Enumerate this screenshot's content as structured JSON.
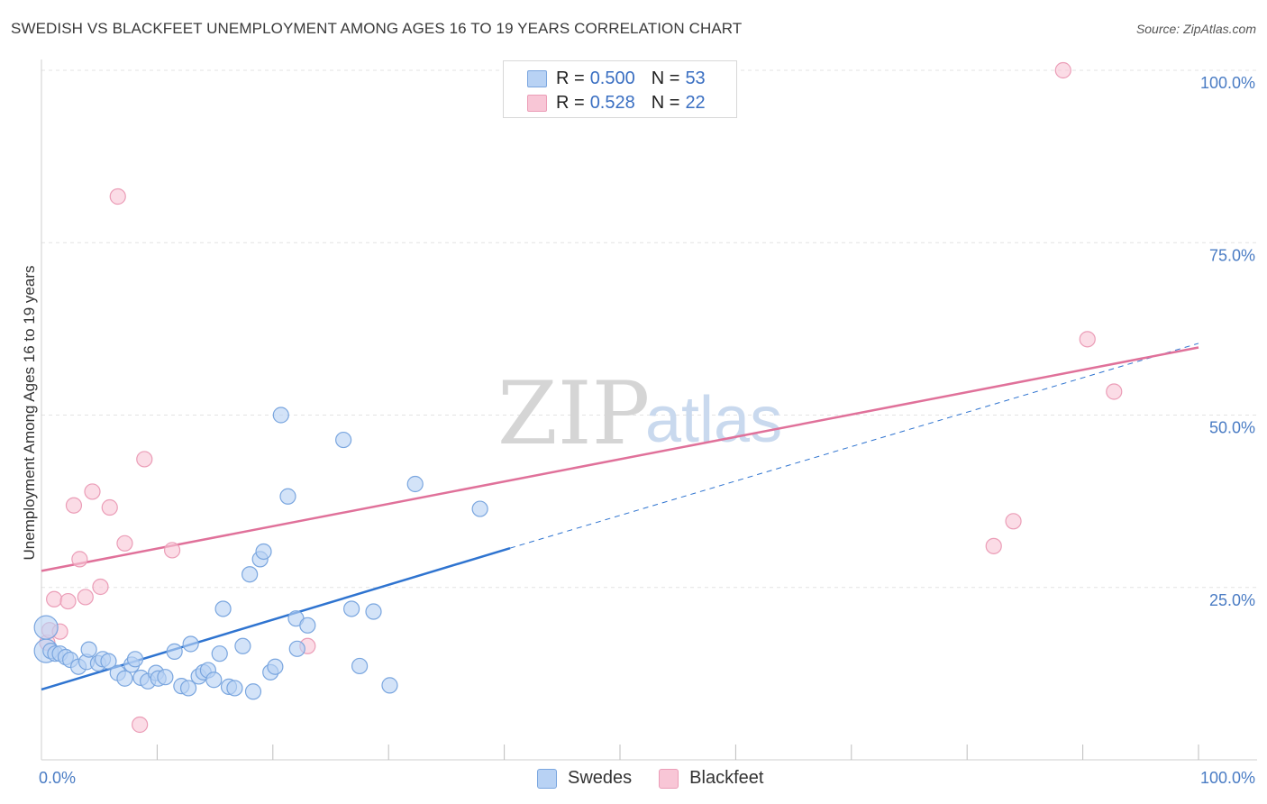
{
  "title": "SWEDISH VS BLACKFEET UNEMPLOYMENT AMONG AGES 16 TO 19 YEARS CORRELATION CHART",
  "source": "Source: ZipAtlas.com",
  "watermark": {
    "zip": "ZIP",
    "atlas": "atlas"
  },
  "colors": {
    "swedes_fill": "#b8d2f4",
    "swedes_stroke": "#7aa6df",
    "swedes_line": "#2f74d0",
    "blackfeet_fill": "#f8c6d6",
    "blackfeet_stroke": "#eb9db7",
    "blackfeet_line": "#e0719a",
    "grid": "#e3e3e3",
    "tick_label": "#4a7cc4"
  },
  "legend": {
    "rows": [
      {
        "r_label": "R =",
        "r_value": "0.500",
        "n_label": "N =",
        "n_value": "53"
      },
      {
        "r_label": "R =",
        "r_value": "0.528",
        "n_label": "N =",
        "n_value": "22"
      }
    ]
  },
  "bottom_legend": [
    {
      "label": "Swedes"
    },
    {
      "label": "Blackfeet"
    }
  ],
  "chart_data": {
    "type": "scatter",
    "title": "SWEDISH VS BLACKFEET UNEMPLOYMENT AMONG AGES 16 TO 19 YEARS CORRELATION CHART",
    "xlabel": "",
    "ylabel": "Unemployment Among Ages 16 to 19 years",
    "xlim": [
      0,
      100
    ],
    "ylim": [
      0,
      100
    ],
    "x_tick_labels": [
      {
        "value": 0,
        "label": "0.0%"
      },
      {
        "value": 100,
        "label": "100.0%"
      }
    ],
    "y_tick_labels": [
      {
        "value": 25,
        "label": "25.0%"
      },
      {
        "value": 50,
        "label": "50.0%"
      },
      {
        "value": 75,
        "label": "75.0%"
      },
      {
        "value": 100,
        "label": "100.0%"
      }
    ],
    "grid": true,
    "series": [
      {
        "name": "Swedes",
        "R": 0.5,
        "N": 53,
        "trend": {
          "x0": 0,
          "y0": 10.2,
          "x1": 40.5,
          "y1": 30.7,
          "x_dash_end": 100,
          "y_dash_end": 60.4
        },
        "points": [
          [
            0.4,
            19.2
          ],
          [
            0.4,
            15.8
          ],
          [
            0.8,
            15.8
          ],
          [
            1.2,
            15.4
          ],
          [
            1.6,
            15.4
          ],
          [
            2.1,
            14.9
          ],
          [
            2.5,
            14.5
          ],
          [
            3.2,
            13.5
          ],
          [
            3.9,
            14.2
          ],
          [
            4.1,
            16.0
          ],
          [
            4.9,
            14.0
          ],
          [
            5.3,
            14.6
          ],
          [
            5.8,
            14.3
          ],
          [
            6.6,
            12.6
          ],
          [
            7.2,
            11.8
          ],
          [
            7.8,
            13.8
          ],
          [
            8.1,
            14.6
          ],
          [
            8.6,
            11.9
          ],
          [
            9.2,
            11.4
          ],
          [
            9.9,
            12.6
          ],
          [
            10.1,
            11.8
          ],
          [
            10.7,
            12.0
          ],
          [
            11.5,
            15.7
          ],
          [
            12.1,
            10.7
          ],
          [
            12.7,
            10.4
          ],
          [
            12.9,
            16.8
          ],
          [
            13.6,
            12.1
          ],
          [
            14.0,
            12.7
          ],
          [
            14.4,
            13.0
          ],
          [
            14.9,
            11.6
          ],
          [
            15.4,
            15.4
          ],
          [
            15.7,
            21.9
          ],
          [
            16.2,
            10.6
          ],
          [
            16.7,
            10.4
          ],
          [
            17.4,
            16.5
          ],
          [
            18.0,
            26.9
          ],
          [
            18.3,
            9.9
          ],
          [
            18.9,
            29.1
          ],
          [
            19.2,
            30.2
          ],
          [
            19.8,
            12.7
          ],
          [
            20.2,
            13.5
          ],
          [
            20.7,
            50.0
          ],
          [
            21.3,
            38.2
          ],
          [
            22.0,
            20.5
          ],
          [
            22.1,
            16.1
          ],
          [
            23.0,
            19.5
          ],
          [
            26.1,
            46.4
          ],
          [
            26.8,
            21.9
          ],
          [
            27.5,
            13.6
          ],
          [
            28.7,
            21.5
          ],
          [
            30.1,
            10.8
          ],
          [
            32.3,
            40.0
          ],
          [
            37.9,
            36.4
          ]
        ]
      },
      {
        "name": "Blackfeet",
        "R": 0.528,
        "N": 22,
        "trend": {
          "x0": 0,
          "y0": 27.4,
          "x1": 100,
          "y1": 59.8
        },
        "points": [
          [
            0.5,
            17.0
          ],
          [
            0.7,
            18.8
          ],
          [
            1.1,
            23.3
          ],
          [
            1.6,
            18.6
          ],
          [
            2.3,
            23.0
          ],
          [
            2.8,
            36.9
          ],
          [
            3.3,
            29.1
          ],
          [
            3.8,
            23.6
          ],
          [
            4.4,
            38.9
          ],
          [
            5.1,
            25.1
          ],
          [
            5.9,
            36.6
          ],
          [
            6.6,
            81.7
          ],
          [
            7.2,
            31.4
          ],
          [
            8.5,
            5.1
          ],
          [
            8.9,
            43.6
          ],
          [
            11.3,
            30.4
          ],
          [
            23.0,
            16.5
          ],
          [
            82.3,
            31.0
          ],
          [
            84.0,
            34.6
          ],
          [
            88.3,
            100.0
          ],
          [
            90.4,
            61.0
          ],
          [
            92.7,
            53.4
          ]
        ]
      }
    ]
  }
}
